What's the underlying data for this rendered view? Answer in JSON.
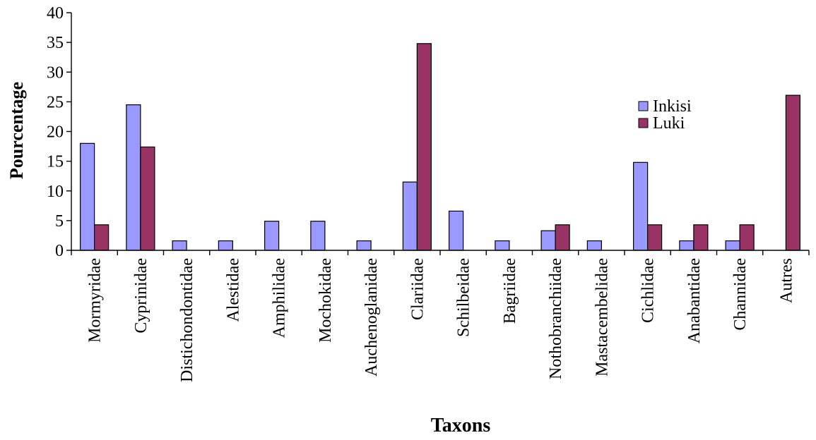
{
  "chart_data": {
    "type": "bar",
    "xlabel": "Taxons",
    "ylabel": "Pourcentage",
    "ylim": [
      0,
      40
    ],
    "yticks": [
      0,
      5,
      10,
      15,
      20,
      25,
      30,
      35,
      40
    ],
    "grid": false,
    "legend_position": "right",
    "categories": [
      "Mormyridae",
      "Cyprinidae",
      "Distichondontidae",
      "Alestidae",
      "Amphilidae",
      "Mochokidae",
      "Auchenoglanidae",
      "Clariidae",
      "Schilbeidae",
      "Bagriidae",
      "Nothobranchiidae",
      "Mastacembelidae",
      "Cichlidae",
      "Anabantidae",
      "Channidae",
      "Autres"
    ],
    "series": [
      {
        "name": "Inkisi",
        "color": "#9999ff",
        "values": [
          18.0,
          24.5,
          1.6,
          1.6,
          4.9,
          4.9,
          1.6,
          11.5,
          6.6,
          1.6,
          3.3,
          1.6,
          14.8,
          1.6,
          1.6,
          0
        ]
      },
      {
        "name": "Luki",
        "color": "#993366",
        "values": [
          4.3,
          17.4,
          0,
          0,
          0,
          0,
          0,
          34.8,
          0,
          0,
          4.3,
          0,
          4.3,
          4.3,
          4.3,
          26.1
        ]
      }
    ]
  }
}
